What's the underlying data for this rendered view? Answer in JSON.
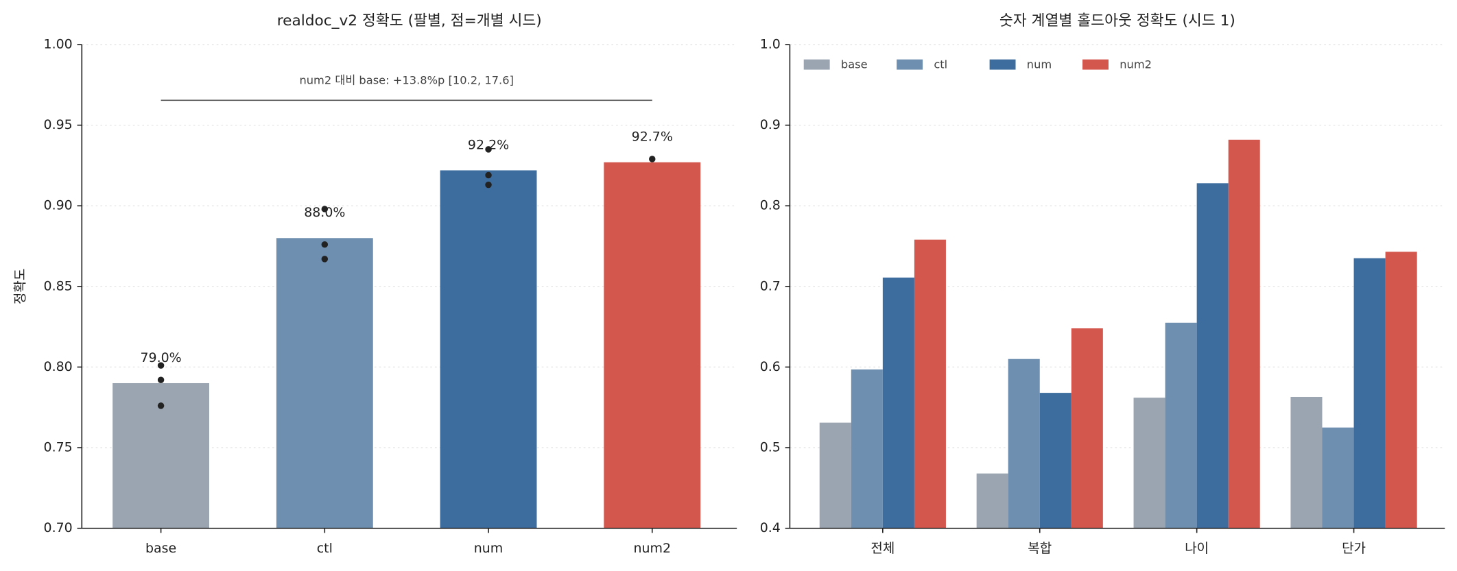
{
  "chart_data": [
    {
      "type": "bar",
      "title": "realdoc_v2 정확도 (팔별, 점=개별 시드)",
      "ylabel": "정확도",
      "categories": [
        "base",
        "ctl",
        "num",
        "num2"
      ],
      "values": [
        0.79,
        0.88,
        0.922,
        0.927
      ],
      "value_labels": [
        "79.0%",
        "88.0%",
        "92.2%",
        "92.7%"
      ],
      "colors": [
        "#9aa5b1",
        "#6e8fb0",
        "#3d6d9e",
        "#d4574e"
      ],
      "seeds": [
        [
          0.801,
          0.792,
          0.776
        ],
        [
          0.898,
          0.876,
          0.867
        ],
        [
          0.935,
          0.919,
          0.913
        ],
        [
          0.929
        ]
      ],
      "annotation": "num2 대비 base: +13.8%p [10.2, 17.6]",
      "ylim": [
        0.7,
        1.0
      ],
      "yticks": [
        {
          "value": 0.7,
          "label": "0.70"
        },
        {
          "value": 0.75,
          "label": "0.75"
        },
        {
          "value": 0.8,
          "label": "0.80"
        },
        {
          "value": 0.85,
          "label": "0.85"
        },
        {
          "value": 0.9,
          "label": "0.90"
        },
        {
          "value": 0.95,
          "label": "0.95"
        },
        {
          "value": 1.0,
          "label": "1.00"
        }
      ],
      "grid": true
    },
    {
      "type": "grouped_bar",
      "title": "숫자 계열별 홀드아웃 정확도 (시드 1)",
      "categories": [
        "전체",
        "복합",
        "나이",
        "단가"
      ],
      "series": [
        {
          "name": "base",
          "color": "#9aa5b1",
          "values": [
            0.531,
            0.468,
            0.562,
            0.563
          ]
        },
        {
          "name": "ctl",
          "color": "#6e8fb0",
          "values": [
            0.597,
            0.61,
            0.655,
            0.525
          ]
        },
        {
          "name": "num",
          "color": "#3d6d9e",
          "values": [
            0.711,
            0.568,
            0.828,
            0.735
          ]
        },
        {
          "name": "num2",
          "color": "#d4574e",
          "values": [
            0.758,
            0.648,
            0.882,
            0.743
          ]
        }
      ],
      "ylim": [
        0.4,
        1.0
      ],
      "yticks": [
        0.4,
        0.5,
        0.6,
        0.7,
        0.8,
        0.9,
        {
          "value": 1.0,
          "label": "1.0"
        }
      ],
      "grid": true,
      "legend": "upper left"
    }
  ]
}
